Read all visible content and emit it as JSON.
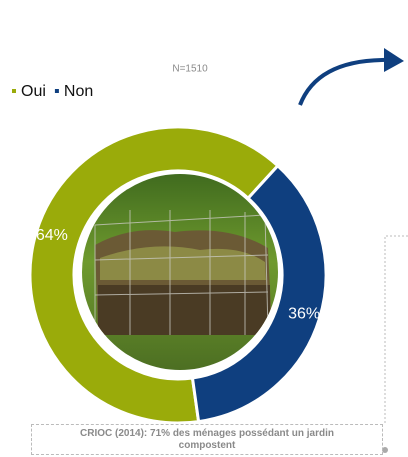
{
  "chart_data": {
    "type": "pie",
    "subtitle": "N=1510",
    "categories": [
      "Oui",
      "Non"
    ],
    "values": [
      64,
      36
    ],
    "value_labels": [
      "64%",
      "36%"
    ],
    "colors": [
      "#9aab0a",
      "#0f3f7f"
    ],
    "caption": "CRIOC (2014): 71% des ménages possédant un jardin compostent"
  }
}
